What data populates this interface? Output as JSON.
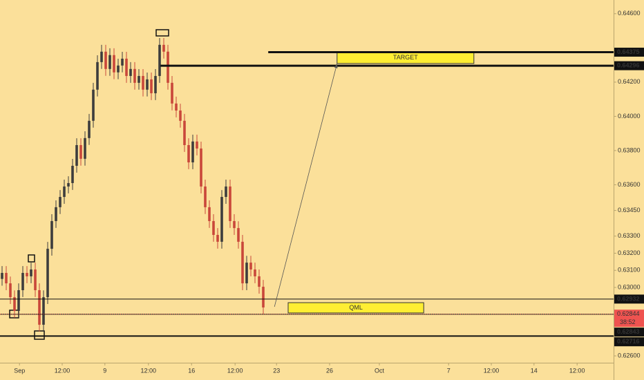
{
  "chart_data": {
    "type": "candlestick",
    "up_color": "#3d3d3d",
    "down_color": "#c9473a",
    "background": "#fbe09a",
    "ylim": [
      0.6256,
      0.6468
    ],
    "xlim": [
      0,
      148
    ],
    "yticks": [
      {
        "value": 0.646,
        "label": "0.64600"
      },
      {
        "value": 0.642,
        "label": "0.64200"
      },
      {
        "value": 0.64,
        "label": "0.64000"
      },
      {
        "value": 0.638,
        "label": "0.63800"
      },
      {
        "value": 0.636,
        "label": "0.63600"
      },
      {
        "value": 0.6345,
        "label": "0.63450"
      },
      {
        "value": 0.633,
        "label": "0.63300"
      },
      {
        "value": 0.632,
        "label": "0.63200"
      },
      {
        "value": 0.631,
        "label": "0.63100"
      },
      {
        "value": 0.63,
        "label": "0.63000"
      },
      {
        "value": 0.626,
        "label": "0.62600"
      }
    ],
    "xticks": [
      {
        "value": 4.7,
        "label": "Sep"
      },
      {
        "value": 15,
        "label": "12:00"
      },
      {
        "value": 25.3,
        "label": "9"
      },
      {
        "value": 35.8,
        "label": "12:00"
      },
      {
        "value": 46.2,
        "label": "16"
      },
      {
        "value": 56.7,
        "label": "12:00"
      },
      {
        "value": 66.7,
        "label": "23"
      },
      {
        "value": 79.5,
        "label": "26"
      },
      {
        "value": 91.5,
        "label": "Oct"
      },
      {
        "value": 108.2,
        "label": "7"
      },
      {
        "value": 118.5,
        "label": "12:00"
      },
      {
        "value": 128.8,
        "label": "14"
      },
      {
        "value": 139.2,
        "label": "12:00"
      }
    ],
    "open": [
      0.6305,
      0.63085,
      0.63024,
      0.62943,
      0.62863,
      0.62984,
      0.63085,
      0.63065,
      0.63105,
      0.62984,
      0.62782,
      0.62943,
      0.63226,
      0.63388,
      0.63469,
      0.63529,
      0.6359,
      0.6361,
      0.63711,
      0.63832,
      0.63752,
      0.63873,
      0.63974,
      0.64156,
      0.64317,
      0.64378,
      0.64277,
      0.64358,
      0.64257,
      0.64297,
      0.64337,
      0.64236,
      0.64277,
      0.64196,
      0.64236,
      0.64156,
      0.64216,
      0.64135,
      0.64236,
      0.64418,
      0.64378,
      0.64196,
      0.64075,
      0.64034,
      0.63974,
      0.63832,
      0.63731,
      0.63853,
      0.63812,
      0.6359,
      0.63469,
      0.63388,
      0.63307,
      0.63267,
      0.63529,
      0.6359,
      0.63388,
      0.63347,
      0.63267,
      0.63024,
      0.63145,
      0.63105,
      0.63065,
      0.63004
    ],
    "high": [
      0.63125,
      0.63125,
      0.63064,
      0.62983,
      0.63024,
      0.63125,
      0.63125,
      0.63145,
      0.63145,
      0.63024,
      0.62983,
      0.63266,
      0.63428,
      0.63509,
      0.63569,
      0.6363,
      0.6365,
      0.63751,
      0.63872,
      0.63872,
      0.63913,
      0.64014,
      0.64196,
      0.64357,
      0.64418,
      0.64418,
      0.64398,
      0.64398,
      0.64337,
      0.64377,
      0.64377,
      0.64317,
      0.64317,
      0.64276,
      0.64276,
      0.64256,
      0.64256,
      0.64276,
      0.64458,
      0.64458,
      0.64418,
      0.64236,
      0.64115,
      0.64074,
      0.64014,
      0.63872,
      0.63893,
      0.63893,
      0.63852,
      0.6363,
      0.63509,
      0.63428,
      0.63347,
      0.63569,
      0.6363,
      0.6363,
      0.63428,
      0.63387,
      0.63307,
      0.63185,
      0.63185,
      0.63145,
      0.63105,
      0.63044
    ],
    "low": [
      0.6301,
      0.62984,
      0.62903,
      0.62823,
      0.62823,
      0.62944,
      0.63025,
      0.63025,
      0.62944,
      0.62742,
      0.62742,
      0.62903,
      0.63186,
      0.63348,
      0.63429,
      0.63489,
      0.6355,
      0.6357,
      0.63671,
      0.63712,
      0.63712,
      0.63833,
      0.63934,
      0.64116,
      0.64277,
      0.64237,
      0.64237,
      0.64217,
      0.64217,
      0.64257,
      0.64196,
      0.64196,
      0.64156,
      0.64156,
      0.64116,
      0.64116,
      0.64095,
      0.64095,
      0.64196,
      0.64338,
      0.64156,
      0.64035,
      0.63994,
      0.63934,
      0.63792,
      0.63691,
      0.63691,
      0.63772,
      0.6355,
      0.63429,
      0.63348,
      0.63267,
      0.63227,
      0.63227,
      0.63489,
      0.63348,
      0.63307,
      0.63227,
      0.62984,
      0.62984,
      0.63065,
      0.63025,
      0.62964,
      0.62843
    ],
    "close": [
      0.63085,
      0.63024,
      0.62943,
      0.62863,
      0.62984,
      0.63085,
      0.63065,
      0.63105,
      0.62984,
      0.62782,
      0.62943,
      0.63226,
      0.63388,
      0.63469,
      0.63529,
      0.6359,
      0.6361,
      0.63711,
      0.63832,
      0.63752,
      0.63873,
      0.63974,
      0.64156,
      0.64317,
      0.64378,
      0.64277,
      0.64358,
      0.64257,
      0.64297,
      0.64337,
      0.64236,
      0.64277,
      0.64196,
      0.64236,
      0.64156,
      0.64216,
      0.64135,
      0.64236,
      0.64418,
      0.64378,
      0.64196,
      0.64075,
      0.64034,
      0.63974,
      0.63832,
      0.63731,
      0.63853,
      0.63812,
      0.6359,
      0.63469,
      0.63388,
      0.63307,
      0.63267,
      0.63529,
      0.6359,
      0.63388,
      0.63347,
      0.63267,
      0.63024,
      0.63145,
      0.63105,
      0.63065,
      0.63004,
      0.62883
    ],
    "levels": [
      {
        "value": 0.64375,
        "label": "0.64375",
        "from": 64.7,
        "width": 3
      },
      {
        "value": 0.64296,
        "label": "0.64296",
        "from": 38.7,
        "width": 3
      },
      {
        "value": 0.62932,
        "label": "0.62932",
        "from": 0,
        "width": 1
      },
      {
        "value": 0.62843,
        "label": "0.62843",
        "from": 0,
        "width": 1
      },
      {
        "value": 0.62716,
        "label": "0.62716",
        "from": 0,
        "width": 2
      }
    ],
    "current_price": {
      "value": 0.62844,
      "label": "0.62844",
      "countdown": "38:52",
      "color": "#ef5350"
    },
    "zones": [
      {
        "label": "TARGET",
        "top": 0.64375,
        "bottom": 0.64309,
        "from": 81.3,
        "to": 114.3
      },
      {
        "label": "QML",
        "top": 0.62911,
        "bottom": 0.62851,
        "from": 69.5,
        "to": 102.2
      }
    ],
    "arrow": {
      "from": [
        66.2,
        0.62887
      ],
      "to": [
        81.3,
        0.64309
      ]
    }
  }
}
